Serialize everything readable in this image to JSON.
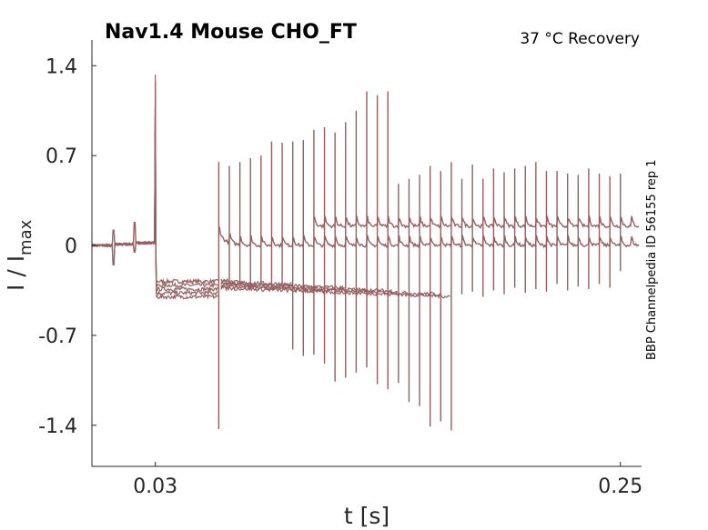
{
  "chart_data": {
    "type": "line",
    "title": "Nav1.4  Mouse  CHO_FT",
    "subtitle": "37 °C  Recovery",
    "side_label": "BBP Channelpedia ID 56155 rep 1",
    "xlabel": "t [s]",
    "ylabel": "I / I",
    "ylabel_sub": "max",
    "xlim": [
      0.0,
      0.26
    ],
    "ylim": [
      -1.72,
      1.6
    ],
    "xticks": [
      {
        "v": 0.03,
        "label": "0.03"
      },
      {
        "v": 0.25,
        "label": "0.25"
      }
    ],
    "yticks": [
      {
        "v": 1.4,
        "label": "1.4"
      },
      {
        "v": 0.7,
        "label": "0.7"
      },
      {
        "v": 0,
        "label": "0"
      },
      {
        "v": -0.7,
        "label": "-0.7"
      },
      {
        "v": -1.4,
        "label": "-1.4"
      }
    ],
    "color": "#955f5f",
    "prepulse": {
      "t": 0.03,
      "peak": 1.33,
      "plateau": [
        -0.28,
        -0.31,
        -0.34,
        -0.37,
        -0.4
      ]
    },
    "spike_start": 0.06,
    "spike_interval": 0.005,
    "spikes_up": [
      0.65,
      0.62,
      0.65,
      0.68,
      0.7,
      0.81,
      0.8,
      0.81,
      0.82,
      0.9,
      0.92,
      0.88,
      0.96,
      1.05,
      1.2,
      1.17,
      1.2,
      0.48,
      0.52,
      0.55,
      0.62,
      0.58,
      0.65,
      0.52,
      0.63,
      0.52,
      0.6,
      0.57,
      0.6,
      0.62,
      0.65,
      0.58,
      0.58,
      0.56,
      0.55,
      0.6,
      0.56,
      0.54,
      0.56
    ],
    "spikes_down": [
      -1.43,
      -0.3,
      -0.3,
      -0.31,
      -0.31,
      -0.32,
      -0.32,
      -0.81,
      -0.86,
      -0.85,
      -0.92,
      -1.06,
      -1.03,
      -0.99,
      -0.95,
      -1.08,
      -1.12,
      -1.07,
      -1.22,
      -1.25,
      -1.41,
      -1.37,
      -1.44,
      -0.38,
      -0.36,
      -0.4,
      -0.35,
      -0.38,
      -0.33,
      -0.37,
      -0.34,
      -0.36,
      -0.3,
      -0.35,
      -0.32,
      -0.34,
      -0.3,
      -0.33,
      -0.2
    ],
    "recovered_levels": [
      0.0,
      0.15
    ],
    "inactivated_end_times": [
      0.065,
      0.095,
      0.12,
      0.145,
      0.165,
      0.17
    ]
  }
}
